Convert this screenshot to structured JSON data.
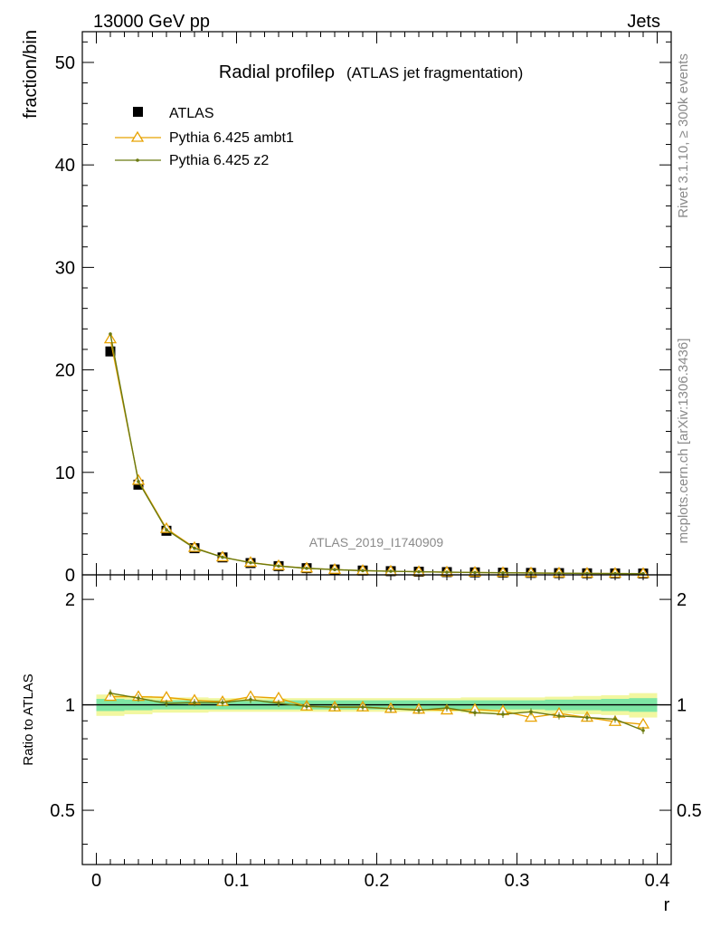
{
  "header": {
    "energy_label": "13000 GeV pp",
    "category_label": "Jets"
  },
  "side_labels": {
    "rivet": "Rivet 3.1.10, ≥ 300k events",
    "mcplots": "mcplots.cern.ch [arXiv:1306.3436]"
  },
  "watermark": "ATLAS_2019_I1740909",
  "chart_data": [
    {
      "type": "scatter",
      "title": "Radial profileρ",
      "subtitle": "(ATLAS jet fragmentation)",
      "ylabel": "fraction/bin",
      "xlim": [
        -0.01,
        0.41
      ],
      "ylim": [
        0,
        53
      ],
      "yticks": [
        0,
        10,
        20,
        30,
        40,
        50
      ],
      "x": [
        0.01,
        0.03,
        0.05,
        0.07,
        0.09,
        0.11,
        0.13,
        0.15,
        0.17,
        0.19,
        0.21,
        0.23,
        0.25,
        0.27,
        0.29,
        0.31,
        0.33,
        0.35,
        0.37,
        0.39
      ],
      "legend_position": "top-left",
      "series": [
        {
          "name": "ATLAS",
          "color": "#000000",
          "marker": "square",
          "values": [
            21.8,
            8.8,
            4.3,
            2.6,
            1.7,
            1.15,
            0.85,
            0.65,
            0.52,
            0.42,
            0.36,
            0.31,
            0.27,
            0.24,
            0.21,
            0.19,
            0.17,
            0.15,
            0.14,
            0.13
          ]
        },
        {
          "name": "Pythia 6.425 ambt1",
          "color": "#e8a200",
          "marker": "triangle-open",
          "values": [
            23.0,
            9.2,
            4.5,
            2.65,
            1.72,
            1.2,
            0.88,
            0.64,
            0.51,
            0.41,
            0.35,
            0.3,
            0.26,
            0.23,
            0.2,
            0.18,
            0.16,
            0.14,
            0.13,
            0.12
          ]
        },
        {
          "name": "Pythia 6.425 z2",
          "color": "#6b7a10",
          "marker": "dot",
          "values": [
            23.5,
            9.1,
            4.4,
            2.6,
            1.72,
            1.19,
            0.86,
            0.64,
            0.51,
            0.41,
            0.35,
            0.3,
            0.26,
            0.23,
            0.2,
            0.18,
            0.16,
            0.14,
            0.13,
            0.12
          ]
        }
      ]
    },
    {
      "type": "line",
      "ylabel": "Ratio to ATLAS",
      "xlabel": "r",
      "xlim": [
        -0.01,
        0.41
      ],
      "ylim": [
        0.35,
        2.35
      ],
      "yticks": [
        0.5,
        1,
        2
      ],
      "ytick_labels": [
        "0.5",
        "1",
        "2"
      ],
      "xticks": [
        0,
        0.1,
        0.2,
        0.3,
        0.4
      ],
      "xtick_labels": [
        "0",
        "0.1",
        "0.2",
        "0.3",
        "0.4"
      ],
      "x": [
        0.01,
        0.03,
        0.05,
        0.07,
        0.09,
        0.11,
        0.13,
        0.15,
        0.17,
        0.19,
        0.21,
        0.23,
        0.25,
        0.27,
        0.29,
        0.31,
        0.33,
        0.35,
        0.37,
        0.39
      ],
      "band_inner": [
        0.04,
        0.035,
        0.03,
        0.03,
        0.03,
        0.03,
        0.03,
        0.03,
        0.03,
        0.03,
        0.03,
        0.03,
        0.03,
        0.03,
        0.03,
        0.03,
        0.035,
        0.035,
        0.04,
        0.045
      ],
      "band_outer": [
        0.07,
        0.06,
        0.05,
        0.05,
        0.045,
        0.045,
        0.045,
        0.045,
        0.045,
        0.045,
        0.045,
        0.045,
        0.045,
        0.05,
        0.05,
        0.05,
        0.055,
        0.06,
        0.065,
        0.08
      ],
      "band_colors": {
        "inner": "#7ee6a4",
        "outer": "#f2f7a0"
      },
      "series": [
        {
          "name": "Pythia 6.425 ambt1",
          "color": "#e8a200",
          "marker": "triangle-open",
          "values": [
            1.055,
            1.055,
            1.05,
            1.03,
            1.02,
            1.055,
            1.045,
            0.99,
            0.985,
            0.985,
            0.975,
            0.97,
            0.965,
            0.97,
            0.96,
            0.92,
            0.945,
            0.92,
            0.895,
            0.88
          ]
        },
        {
          "name": "Pythia 6.425 z2",
          "color": "#6b7a10",
          "marker": "dot",
          "values": [
            1.08,
            1.045,
            1.01,
            1.015,
            1.015,
            1.035,
            1.01,
            0.99,
            0.985,
            0.985,
            0.975,
            0.965,
            0.98,
            0.95,
            0.94,
            0.955,
            0.93,
            0.92,
            0.91,
            0.845
          ]
        }
      ]
    }
  ]
}
